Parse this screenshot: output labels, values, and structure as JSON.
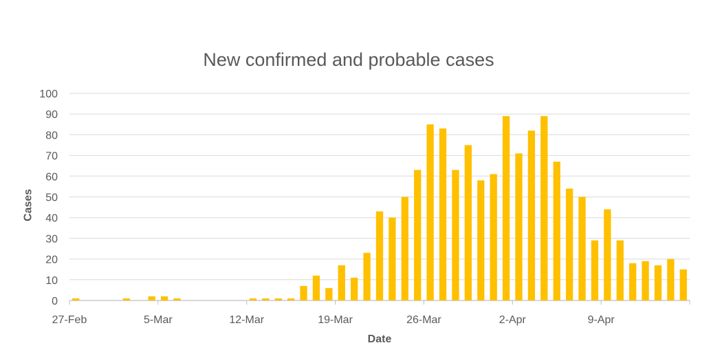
{
  "chart_data": {
    "type": "bar",
    "title": "New confirmed and probable cases",
    "xlabel": "Date",
    "ylabel": "Cases",
    "ylim": [
      0,
      100
    ],
    "yticks": [
      0,
      10,
      20,
      30,
      40,
      50,
      60,
      70,
      80,
      90,
      100
    ],
    "grid": true,
    "legend": "none",
    "bar_color": "#FFC000",
    "x_tick_labels": [
      "27-Feb",
      "5-Mar",
      "12-Mar",
      "19-Mar",
      "26-Mar",
      "2-Apr",
      "9-Apr"
    ],
    "categories": [
      "27-Feb",
      "28-Feb",
      "29-Feb",
      "1-Mar",
      "2-Mar",
      "3-Mar",
      "4-Mar",
      "5-Mar",
      "6-Mar",
      "7-Mar",
      "8-Mar",
      "9-Mar",
      "10-Mar",
      "11-Mar",
      "12-Mar",
      "13-Mar",
      "14-Mar",
      "15-Mar",
      "16-Mar",
      "17-Mar",
      "18-Mar",
      "19-Mar",
      "20-Mar",
      "21-Mar",
      "22-Mar",
      "23-Mar",
      "24-Mar",
      "25-Mar",
      "26-Mar",
      "27-Mar",
      "28-Mar",
      "29-Mar",
      "30-Mar",
      "31-Mar",
      "1-Apr",
      "2-Apr",
      "3-Apr",
      "4-Apr",
      "5-Apr",
      "6-Apr",
      "7-Apr",
      "8-Apr",
      "9-Apr",
      "10-Apr",
      "11-Apr",
      "12-Apr",
      "13-Apr",
      "14-Apr",
      "15-Apr"
    ],
    "values": [
      1,
      0,
      0,
      0,
      1,
      0,
      2,
      2,
      1,
      0,
      0,
      0,
      0,
      0,
      1,
      1,
      1,
      1,
      7,
      12,
      6,
      17,
      11,
      23,
      43,
      40,
      50,
      63,
      85,
      83,
      63,
      75,
      58,
      61,
      89,
      71,
      82,
      89,
      67,
      54,
      50,
      29,
      44,
      29,
      18,
      19,
      17,
      20,
      15
    ]
  }
}
